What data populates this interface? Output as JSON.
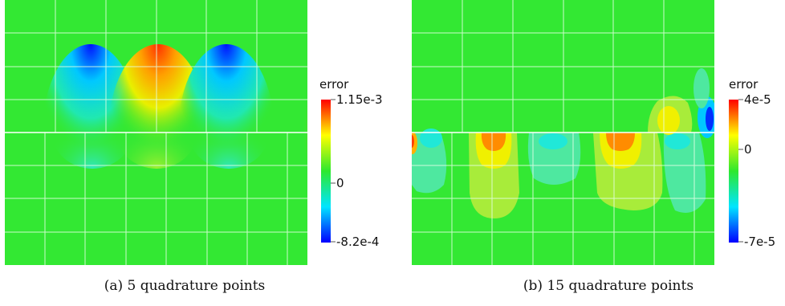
{
  "panels": [
    {
      "caption": "(a) 5 quadrature points",
      "colorbar": {
        "title": "error",
        "max_label": "1.15e-3",
        "mid_label": "0",
        "min_label": "-8.2e-4"
      },
      "background_color": "#33e833"
    },
    {
      "caption": "(b) 15 quadrature points",
      "colorbar": {
        "title": "error",
        "max_label": "4e-5",
        "mid_label": "0",
        "min_label": "-7e-5"
      },
      "background_color": "#33e833"
    }
  ],
  "colormap": [
    "#0000ff",
    "#00ffff",
    "#00ff00",
    "#ffff00",
    "#ff0000"
  ]
}
